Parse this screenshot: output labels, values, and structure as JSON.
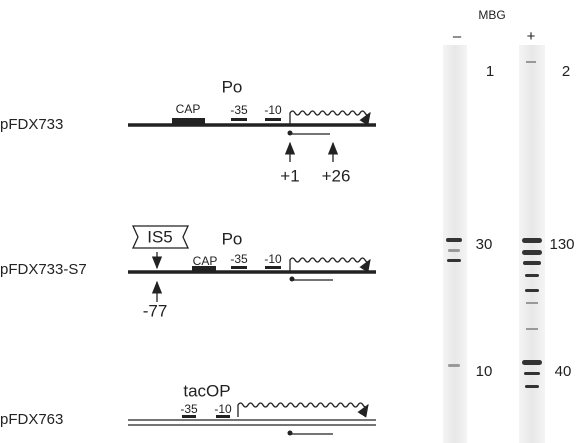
{
  "gel": {
    "header": "MBG",
    "lanes": [
      "–",
      "+"
    ],
    "markers": [
      "1",
      "2",
      "30",
      "130",
      "10",
      "40"
    ]
  },
  "constructs": [
    {
      "name": "pFDX733",
      "promoter": "Po",
      "cap": "CAP",
      "minus35": "-35",
      "minus10": "-10",
      "start": "+1",
      "end": "+26"
    },
    {
      "name": "pFDX733-S7",
      "insert": "IS5",
      "promoter": "Po",
      "cap": "CAP",
      "minus35": "-35",
      "minus10": "-10",
      "site": "-77"
    },
    {
      "name": "pFDX763",
      "promoter": "tacOP",
      "minus35": "-35",
      "minus10": "-10"
    }
  ]
}
